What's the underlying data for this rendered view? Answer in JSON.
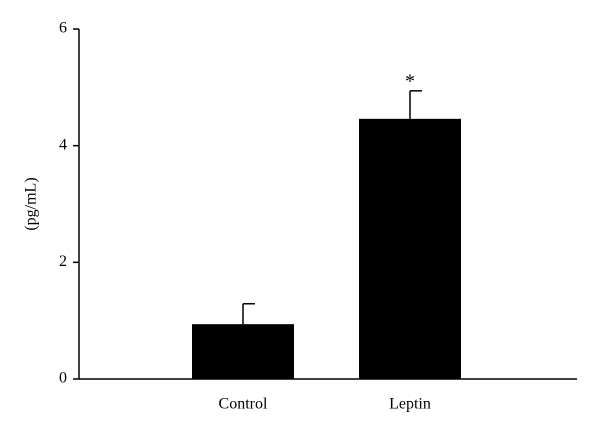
{
  "chart_data": {
    "type": "bar",
    "y_label": "(pg/mL)",
    "categories": [
      "Control",
      "Leptin"
    ],
    "values": [
      0.94,
      4.46
    ],
    "errors": [
      0.35,
      0.48
    ],
    "annotation": "*",
    "color": "#000000",
    "ylim": [
      0,
      6
    ],
    "yticks": [
      0,
      2,
      4,
      6
    ],
    "grid": false
  }
}
